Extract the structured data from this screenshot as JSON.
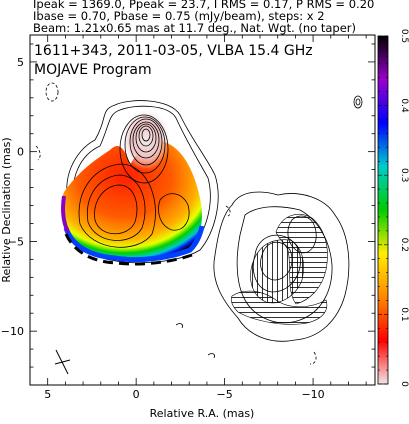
{
  "header_lines": [
    "Ipeak = 1369.0, Ppeak = 23.7, I RMS = 0.17, P RMS = 0.20",
    "Ibase = 0.70, Pbase = 0.75 (mJy/beam), steps: x 2",
    "Beam: 1.21x0.65 mas at 11.7 deg., Nat. Wgt. (no taper)"
  ],
  "chart_data": {
    "type": "heatmap",
    "title": "1611+343, 2011-03-05, VLBA 15.4 GHz",
    "subtitle": "MOJAVE Program",
    "xlabel": "Relative R.A. (mas)",
    "ylabel": "Relative Declination (mas)",
    "xlim": [
      6,
      -13.5
    ],
    "ylim": [
      -13,
      6.5
    ],
    "x_ticks": [
      5,
      0,
      -5,
      -10
    ],
    "x_tick_labels": [
      "5",
      "0",
      "−5",
      "−10"
    ],
    "y_ticks": [
      5,
      0,
      -5,
      -10
    ],
    "y_tick_labels": [
      "5",
      "0",
      "−5",
      "−10"
    ],
    "colorbar": {
      "range": [
        0,
        0.5
      ],
      "ticks": [
        0,
        0.1,
        0.2,
        0.3,
        0.4,
        0.5
      ],
      "tick_labels": [
        "0",
        "0.1",
        "0.2",
        "0.3",
        "0.4",
        "0.5"
      ],
      "stops": [
        "#f2e6e6",
        "#ff0000",
        "#ff8800",
        "#ffee00",
        "#00cc00",
        "#00cccc",
        "#0000ff",
        "#9900cc",
        "#000000"
      ]
    },
    "core_position": [
      0,
      0
    ],
    "peak_intensity_mJy_per_beam": 1369.0,
    "peak_polarized_mJy_per_beam": 23.7,
    "beam": {
      "major_mas": 1.21,
      "minor_mas": 0.65,
      "pa_deg": 11.7
    }
  }
}
